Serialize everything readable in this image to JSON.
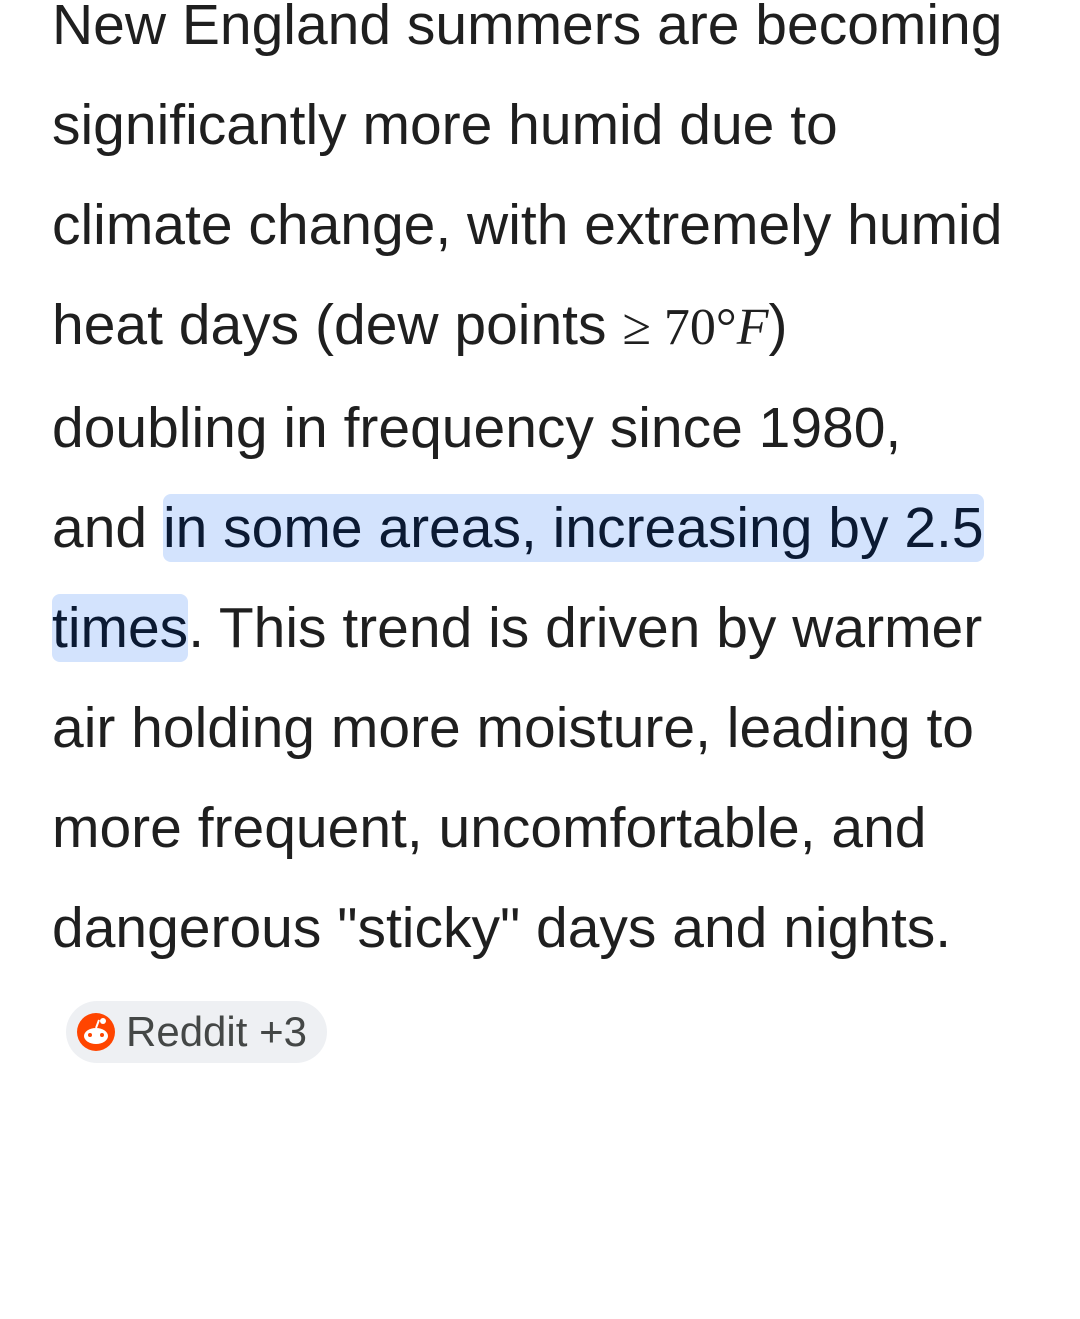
{
  "paragraph": {
    "text_before": "New England summers are becoming significantly more humid due to climate change, with extremely humid heat days (dew points ",
    "math_relation": "≥ 70°",
    "math_variable": "F",
    "text_after_math": ") doubling in frequency since 1980, and ",
    "highlight": "in some areas, increasing by 2.5 times",
    "text_end": ". This trend is driven by warmer air holding more moisture, leading to more frequent, uncomfortable, and dangerous \"sticky\" days and nights.",
    "source_chip": {
      "label": "Reddit",
      "count": "+3"
    }
  }
}
